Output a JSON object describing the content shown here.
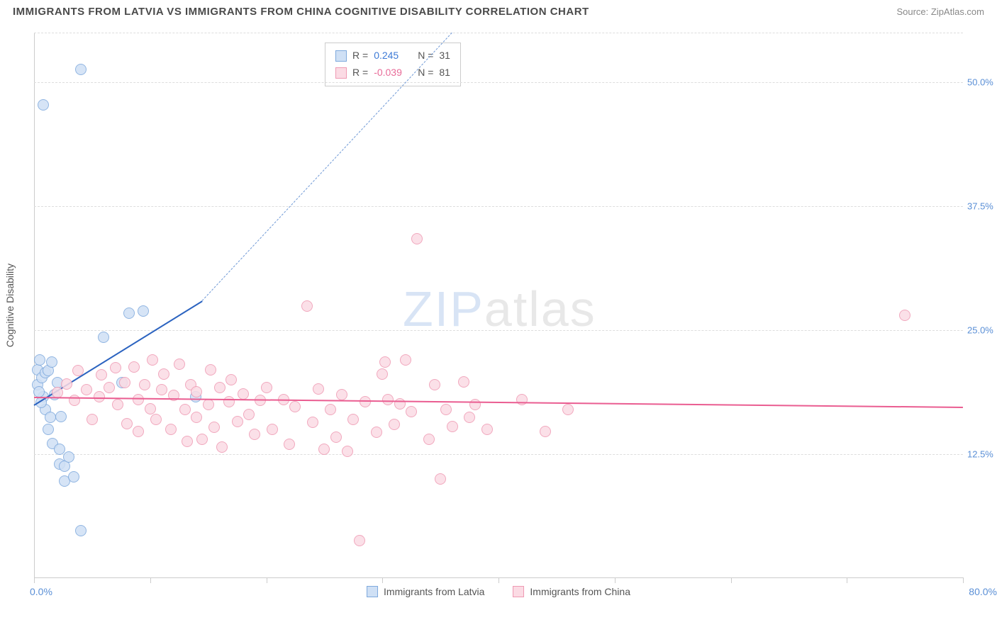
{
  "header": {
    "title": "IMMIGRANTS FROM LATVIA VS IMMIGRANTS FROM CHINA COGNITIVE DISABILITY CORRELATION CHART",
    "source_prefix": "Source: ",
    "source_name": "ZipAtlas.com"
  },
  "chart": {
    "type": "scatter",
    "y_axis_title": "Cognitive Disability",
    "xlim": [
      0,
      80
    ],
    "ylim": [
      0,
      55
    ],
    "x_ticks": [
      0,
      10,
      20,
      30,
      40,
      50,
      60,
      70,
      80
    ],
    "x_tick_labels": {
      "min": "0.0%",
      "max": "80.0%"
    },
    "y_gridlines": [
      12.5,
      25.0,
      37.5,
      50.0,
      55.0
    ],
    "y_tick_labels": [
      "12.5%",
      "25.0%",
      "37.5%",
      "50.0%"
    ],
    "y_tick_positions": [
      12.5,
      25.0,
      37.5,
      50.0
    ],
    "y_tick_color": "#5a8fd6",
    "x_label_color": "#5a8fd6",
    "grid_color": "#dddddd",
    "axis_color": "#cccccc",
    "background_color": "#ffffff",
    "watermark": {
      "text_a": "ZIP",
      "text_b": "atlas",
      "color_a": "#d8e4f5",
      "color_b": "#e8e8e8",
      "fontsize": 70
    },
    "series": [
      {
        "name": "Immigrants from Latvia",
        "r_value": "0.245",
        "n_value": "31",
        "marker_fill": "#cfe0f5",
        "marker_stroke": "#7ea9dd",
        "marker_radius": 8,
        "line_color": "#2b63c0",
        "line_dash_color": "#6f99d6",
        "value_color": "#3d7ad6",
        "regression": {
          "x1": 0,
          "y1": 17.5,
          "x2": 14.5,
          "y2": 28.0,
          "dash_x2": 36,
          "dash_y2": 55
        },
        "points": [
          [
            0.3,
            19.5
          ],
          [
            0.3,
            21.0
          ],
          [
            0.5,
            22.0
          ],
          [
            0.7,
            20.2
          ],
          [
            0.8,
            18.3
          ],
          [
            1.0,
            20.7
          ],
          [
            1.0,
            17.0
          ],
          [
            1.2,
            20.9
          ],
          [
            1.4,
            16.2
          ],
          [
            1.2,
            15.0
          ],
          [
            1.6,
            13.6
          ],
          [
            2.2,
            13.0
          ],
          [
            2.2,
            11.5
          ],
          [
            2.6,
            11.3
          ],
          [
            2.6,
            9.8
          ],
          [
            3.0,
            12.2
          ],
          [
            0.8,
            47.7
          ],
          [
            2.3,
            16.3
          ],
          [
            4.0,
            51.3
          ],
          [
            4.0,
            4.8
          ],
          [
            6.0,
            24.3
          ],
          [
            7.6,
            19.7
          ],
          [
            8.2,
            26.7
          ],
          [
            9.4,
            26.9
          ],
          [
            13.9,
            18.3
          ],
          [
            1.8,
            18.5
          ],
          [
            0.6,
            17.7
          ],
          [
            0.4,
            18.8
          ],
          [
            2.0,
            19.7
          ],
          [
            3.4,
            10.2
          ],
          [
            1.5,
            21.8
          ]
        ]
      },
      {
        "name": "Immigrants from China",
        "r_value": "-0.039",
        "n_value": "81",
        "marker_fill": "#fbdbe4",
        "marker_stroke": "#ef9ab3",
        "marker_radius": 8,
        "line_color": "#ea5d91",
        "value_color": "#e86b98",
        "regression": {
          "x1": 0,
          "y1": 18.3,
          "x2": 80,
          "y2": 17.3
        },
        "points": [
          [
            2.0,
            18.7
          ],
          [
            2.8,
            19.6
          ],
          [
            3.5,
            17.9
          ],
          [
            3.8,
            20.9
          ],
          [
            4.5,
            19.0
          ],
          [
            5.0,
            16.0
          ],
          [
            5.6,
            18.3
          ],
          [
            5.8,
            20.5
          ],
          [
            6.5,
            19.2
          ],
          [
            7.0,
            21.2
          ],
          [
            7.2,
            17.5
          ],
          [
            7.8,
            19.7
          ],
          [
            8.0,
            15.6
          ],
          [
            8.6,
            21.3
          ],
          [
            9.0,
            18.0
          ],
          [
            9.0,
            14.8
          ],
          [
            9.5,
            19.5
          ],
          [
            10.0,
            17.1
          ],
          [
            10.2,
            22.0
          ],
          [
            10.5,
            16.0
          ],
          [
            11.0,
            19.0
          ],
          [
            11.2,
            20.6
          ],
          [
            11.8,
            15.0
          ],
          [
            12.0,
            18.4
          ],
          [
            12.5,
            21.6
          ],
          [
            13.0,
            17.0
          ],
          [
            13.2,
            13.8
          ],
          [
            13.5,
            19.5
          ],
          [
            14.0,
            16.2
          ],
          [
            14.0,
            18.8
          ],
          [
            14.5,
            14.0
          ],
          [
            15.0,
            17.5
          ],
          [
            15.2,
            21.0
          ],
          [
            15.5,
            15.2
          ],
          [
            16.0,
            19.2
          ],
          [
            16.2,
            13.2
          ],
          [
            16.8,
            17.8
          ],
          [
            17.0,
            20.0
          ],
          [
            17.5,
            15.8
          ],
          [
            18.0,
            18.6
          ],
          [
            18.5,
            16.5
          ],
          [
            19.0,
            14.5
          ],
          [
            19.5,
            17.9
          ],
          [
            20.0,
            19.2
          ],
          [
            20.5,
            15.0
          ],
          [
            21.5,
            18.0
          ],
          [
            22.0,
            13.5
          ],
          [
            22.5,
            17.3
          ],
          [
            23.5,
            27.4
          ],
          [
            24.0,
            15.7
          ],
          [
            24.5,
            19.1
          ],
          [
            25.0,
            13.0
          ],
          [
            25.5,
            17.0
          ],
          [
            26.0,
            14.2
          ],
          [
            26.5,
            18.5
          ],
          [
            27.0,
            12.8
          ],
          [
            27.5,
            16.0
          ],
          [
            28.0,
            3.8
          ],
          [
            28.5,
            17.8
          ],
          [
            29.5,
            14.7
          ],
          [
            30.0,
            20.6
          ],
          [
            30.5,
            18.0
          ],
          [
            31.0,
            15.5
          ],
          [
            31.5,
            17.6
          ],
          [
            32.0,
            22.0
          ],
          [
            32.5,
            16.8
          ],
          [
            33.0,
            34.2
          ],
          [
            34.0,
            14.0
          ],
          [
            34.5,
            19.5
          ],
          [
            35.0,
            10.0
          ],
          [
            35.5,
            17.0
          ],
          [
            36.0,
            15.3
          ],
          [
            37.0,
            19.8
          ],
          [
            37.5,
            16.2
          ],
          [
            38.0,
            17.5
          ],
          [
            39.0,
            15.0
          ],
          [
            42.0,
            18.0
          ],
          [
            44.0,
            14.8
          ],
          [
            46.0,
            17.0
          ],
          [
            75.0,
            26.5
          ],
          [
            30.2,
            21.8
          ]
        ]
      }
    ],
    "legend_box": {
      "r_label": "R = ",
      "n_label": "N = "
    },
    "bottom_legend": {
      "series_a": "Immigrants from Latvia",
      "series_b": "Immigrants from China"
    }
  }
}
